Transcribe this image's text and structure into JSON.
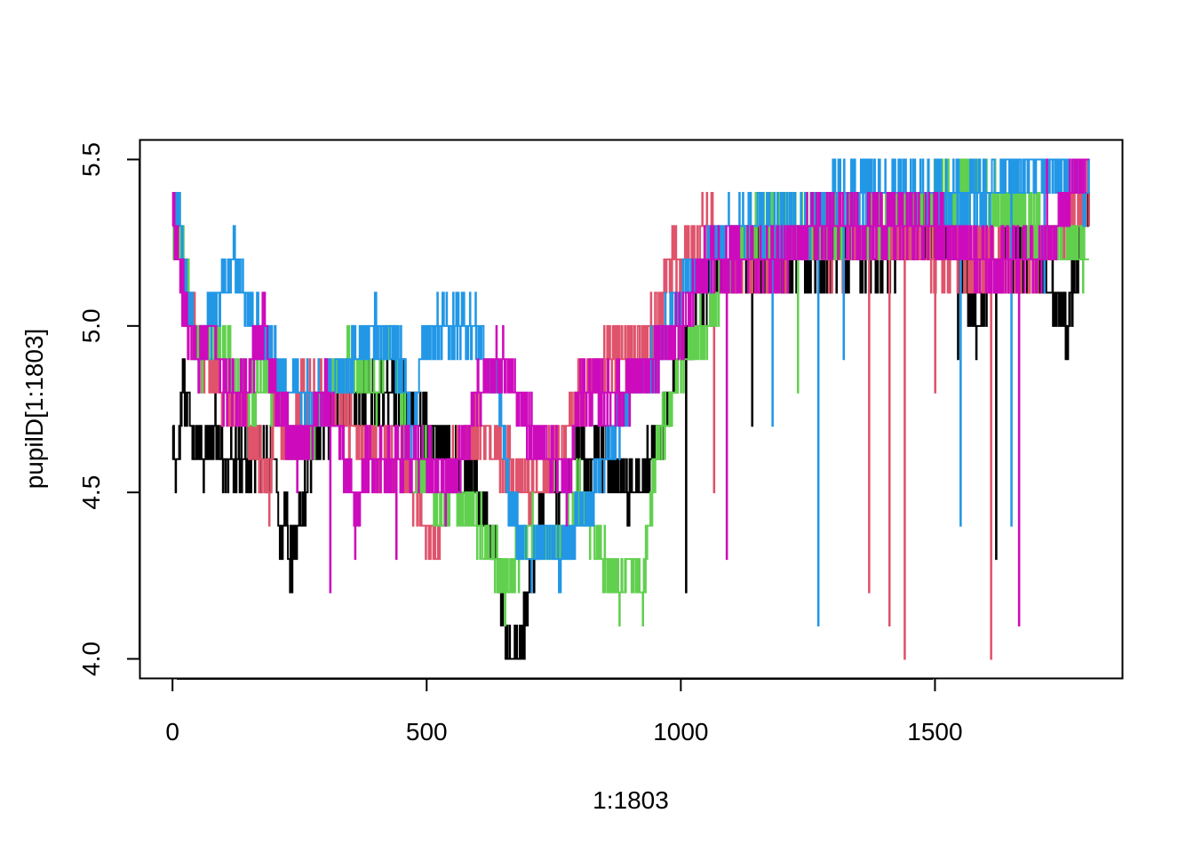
{
  "chart_data": {
    "type": "line",
    "title": "",
    "xlabel": "1:1803",
    "ylabel": "pupilD[1:1803]",
    "xlim": [
      -65,
      1868
    ],
    "ylim": [
      3.94,
      5.56
    ],
    "x_ticks": [
      0,
      500,
      1000,
      1500
    ],
    "y_ticks": [
      4.0,
      4.5,
      5.0,
      5.5
    ],
    "x_tick_labels": [
      "0",
      "500",
      "1000",
      "1500"
    ],
    "y_tick_labels": [
      "4.0",
      "4.5",
      "5.0",
      "5.5"
    ],
    "grid": false,
    "legend": "none",
    "n_points": 1803,
    "series": [
      {
        "color": "#000000",
        "x": [
          0,
          10,
          15,
          20,
          25,
          45,
          55,
          60,
          80,
          100,
          150,
          200,
          215,
          220,
          230,
          250,
          260,
          270,
          280,
          300,
          350,
          400,
          450,
          500,
          550,
          600,
          640,
          655,
          665,
          680,
          690,
          700,
          720,
          740,
          760,
          800,
          850,
          900,
          940,
          960,
          1000,
          1050,
          1100,
          1150,
          1200,
          1300,
          1400,
          1500,
          1550,
          1580,
          1600,
          1620,
          1650,
          1700,
          1760,
          1803
        ],
        "values": [
          4.6,
          4.6,
          4.7,
          4.8,
          4.8,
          4.6,
          4.7,
          4.6,
          4.7,
          4.6,
          4.6,
          4.6,
          4.3,
          4.5,
          4.3,
          4.4,
          4.5,
          4.6,
          4.7,
          4.7,
          4.8,
          4.8,
          4.8,
          4.7,
          4.6,
          4.5,
          4.3,
          4.1,
          4.0,
          4.0,
          4.1,
          4.2,
          4.4,
          4.6,
          4.5,
          4.6,
          4.6,
          4.5,
          4.6,
          4.7,
          4.9,
          5.1,
          5.2,
          5.2,
          5.2,
          5.2,
          5.2,
          5.3,
          5.2,
          5.0,
          5.1,
          5.2,
          5.2,
          5.2,
          5.0,
          5.4
        ],
        "spikes": [
          [
            1010,
            4.2
          ],
          [
            1140,
            4.7
          ],
          [
            1545,
            4.9
          ],
          [
            1620,
            4.3
          ],
          [
            1760,
            4.9
          ]
        ]
      },
      {
        "color": "#DF536B",
        "x": [
          0,
          10,
          25,
          40,
          60,
          100,
          150,
          190,
          200,
          230,
          250,
          300,
          350,
          400,
          450,
          500,
          520,
          550,
          600,
          650,
          700,
          750,
          800,
          850,
          900,
          950,
          980,
          1000,
          1050,
          1100,
          1150,
          1200,
          1250,
          1300,
          1400,
          1500,
          1600,
          1700,
          1803
        ],
        "values": [
          5.4,
          5.2,
          5.1,
          5.0,
          4.9,
          4.8,
          4.7,
          4.5,
          4.8,
          4.6,
          4.8,
          4.8,
          4.7,
          4.6,
          4.6,
          4.4,
          4.3,
          4.6,
          4.7,
          4.6,
          4.5,
          4.6,
          4.8,
          4.9,
          4.9,
          5.0,
          5.2,
          5.2,
          5.3,
          5.2,
          5.2,
          5.2,
          5.3,
          5.2,
          5.3,
          5.2,
          5.2,
          5.2,
          5.4
        ],
        "spikes": [
          [
            1065,
            4.5
          ],
          [
            1370,
            4.2
          ],
          [
            1410,
            4.1
          ],
          [
            1440,
            4.0
          ],
          [
            1500,
            4.8
          ],
          [
            1610,
            4.0
          ]
        ]
      },
      {
        "color": "#61D04F",
        "x": [
          0,
          20,
          40,
          60,
          80,
          100,
          150,
          200,
          250,
          300,
          350,
          400,
          430,
          450,
          470,
          500,
          520,
          550,
          600,
          640,
          650,
          680,
          700,
          750,
          780,
          800,
          850,
          880,
          900,
          925,
          950,
          1000,
          1050,
          1100,
          1150,
          1200,
          1300,
          1400,
          1500,
          1550,
          1600,
          1700,
          1803
        ],
        "values": [
          5.3,
          5.2,
          5.0,
          4.9,
          5.0,
          4.9,
          4.8,
          4.8,
          4.6,
          4.8,
          4.9,
          4.8,
          5.0,
          4.8,
          4.5,
          4.6,
          4.4,
          4.5,
          4.4,
          4.3,
          4.2,
          4.3,
          4.4,
          4.3,
          4.4,
          4.5,
          4.3,
          4.2,
          4.3,
          4.2,
          4.6,
          4.9,
          5.0,
          5.2,
          5.3,
          5.3,
          5.3,
          5.3,
          5.4,
          5.4,
          5.4,
          5.3,
          5.2
        ],
        "spikes": [
          [
            1230,
            4.8
          ],
          [
            1310,
            5.5
          ],
          [
            1460,
            5.5
          ],
          [
            1520,
            5.5
          ],
          [
            1650,
            5.5
          ]
        ]
      },
      {
        "color": "#2297E6",
        "x": [
          0,
          15,
          30,
          40,
          50,
          70,
          100,
          120,
          140,
          160,
          200,
          250,
          300,
          350,
          400,
          450,
          470,
          500,
          550,
          600,
          640,
          660,
          680,
          700,
          740,
          760,
          800,
          850,
          900,
          950,
          1000,
          1050,
          1100,
          1150,
          1200,
          1250,
          1300,
          1400,
          1500,
          1600,
          1700,
          1803
        ],
        "values": [
          5.4,
          5.3,
          5.1,
          5.0,
          4.9,
          5.0,
          5.1,
          5.2,
          5.1,
          5.0,
          4.9,
          4.8,
          4.8,
          4.9,
          5.0,
          4.9,
          4.7,
          5.0,
          5.0,
          5.0,
          4.8,
          4.5,
          4.4,
          4.3,
          4.4,
          4.3,
          4.4,
          4.6,
          4.8,
          4.9,
          5.1,
          5.2,
          5.3,
          5.3,
          5.3,
          5.3,
          5.4,
          5.4,
          5.4,
          5.4,
          5.5,
          5.4
        ],
        "spikes": [
          [
            1180,
            4.7
          ],
          [
            1270,
            4.1
          ],
          [
            1320,
            4.9
          ],
          [
            1550,
            4.4
          ],
          [
            1650,
            4.4
          ],
          [
            1715,
            5.1
          ]
        ]
      },
      {
        "color": "#CD0BBC",
        "x": [
          0,
          10,
          20,
          30,
          50,
          80,
          100,
          140,
          180,
          200,
          250,
          300,
          340,
          360,
          380,
          400,
          450,
          500,
          550,
          600,
          650,
          700,
          750,
          780,
          800,
          850,
          900,
          950,
          1000,
          1050,
          1100,
          1150,
          1200,
          1250,
          1300,
          1400,
          1500,
          1600,
          1700,
          1803
        ],
        "values": [
          5.4,
          5.2,
          5.1,
          5.0,
          4.9,
          5.0,
          4.8,
          4.8,
          5.0,
          4.8,
          4.6,
          4.8,
          4.6,
          4.4,
          4.6,
          4.6,
          4.6,
          4.6,
          4.5,
          4.8,
          4.9,
          4.7,
          4.6,
          4.5,
          4.8,
          4.8,
          4.8,
          4.9,
          5.0,
          5.2,
          5.2,
          5.2,
          5.2,
          5.3,
          5.3,
          5.3,
          5.3,
          5.2,
          5.2,
          5.5
        ],
        "spikes": [
          [
            310,
            4.2
          ],
          [
            440,
            4.3
          ],
          [
            1090,
            4.3
          ],
          [
            1665,
            4.1
          ],
          [
            1720,
            5.5
          ]
        ]
      }
    ]
  }
}
